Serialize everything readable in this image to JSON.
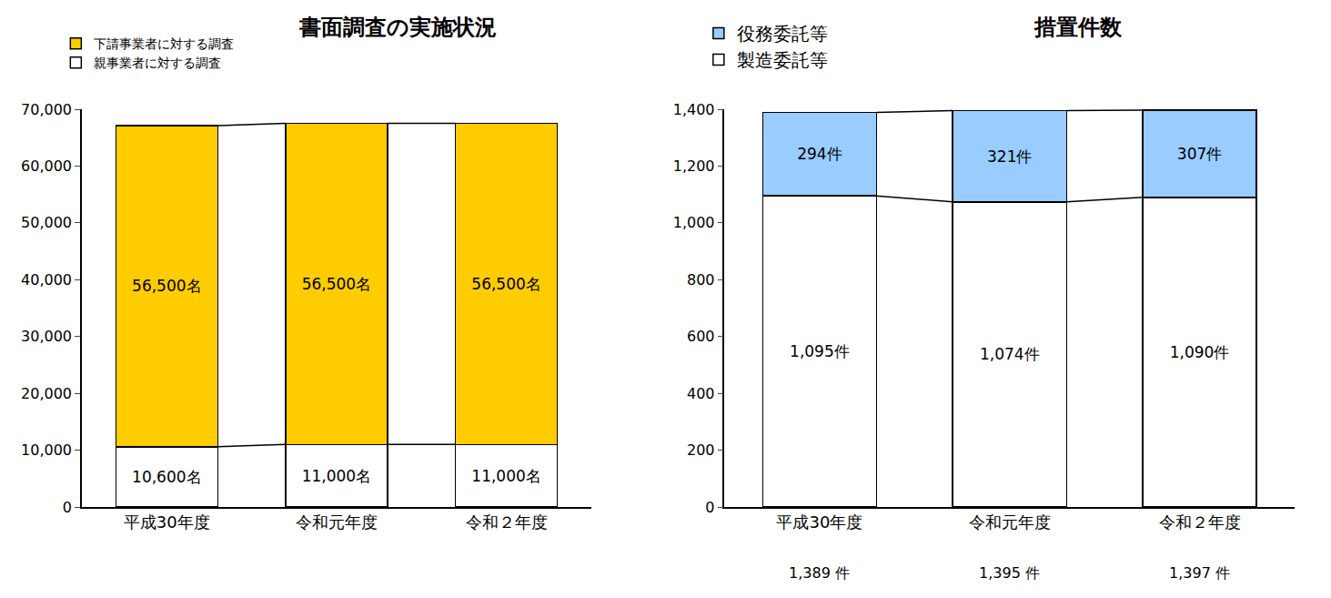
{
  "chart_data": [
    {
      "type": "bar",
      "title": "書面調査の実施状況",
      "stacked": true,
      "data_labels": true,
      "legend": "top-left",
      "grid": false,
      "categories": [
        "平成30年度",
        "令和元年度",
        "令和２年度"
      ],
      "series": [
        {
          "name": "親事業者に対する調査",
          "color": "#ffffff",
          "values": [
            10600,
            11000,
            11000
          ],
          "value_labels": [
            "10,600名",
            "11,000名",
            "11,000名"
          ]
        },
        {
          "name": "下請事業者に対する調査",
          "color": "#ffcc00",
          "values": [
            56500,
            56500,
            56500
          ],
          "value_labels": [
            "56,500名",
            "56,500名",
            "56,500名"
          ]
        }
      ],
      "ylim": [
        0,
        70000
      ],
      "yticks": [
        0,
        {
          "value": 10000,
          "label": "10,000"
        },
        {
          "value": 20000,
          "label": "20,000"
        },
        {
          "value": 30000,
          "label": "30,000"
        },
        {
          "value": 40000,
          "label": "40,000"
        },
        {
          "value": 50000,
          "label": "50,000"
        },
        {
          "value": 60000,
          "label": "60,000"
        },
        {
          "value": 70000,
          "label": "70,000"
        }
      ]
    },
    {
      "type": "bar",
      "title": "措置件数",
      "stacked": true,
      "data_labels": true,
      "legend": "top-left",
      "grid": false,
      "categories": [
        "平成30年度",
        "令和元年度",
        "令和２年度"
      ],
      "series": [
        {
          "name": "製造委託等",
          "color": "#ffffff",
          "values": [
            1095,
            1074,
            1090
          ],
          "value_labels": [
            "1,095件",
            "1,074件",
            "1,090件"
          ]
        },
        {
          "name": "役務委託等",
          "color": "#99ccff",
          "values": [
            294,
            321,
            307
          ],
          "value_labels": [
            "294件",
            "321件",
            "307件"
          ]
        }
      ],
      "totals": [
        1389,
        1395,
        1397
      ],
      "total_labels": [
        "1,389 件",
        "1,395 件",
        "1,397 件"
      ],
      "ylim": [
        0,
        1400
      ],
      "yticks": [
        0,
        200,
        400,
        600,
        800,
        {
          "value": 1000,
          "label": "1,000"
        },
        {
          "value": 1200,
          "label": "1,200"
        },
        {
          "value": 1400,
          "label": "1,400"
        }
      ]
    }
  ]
}
